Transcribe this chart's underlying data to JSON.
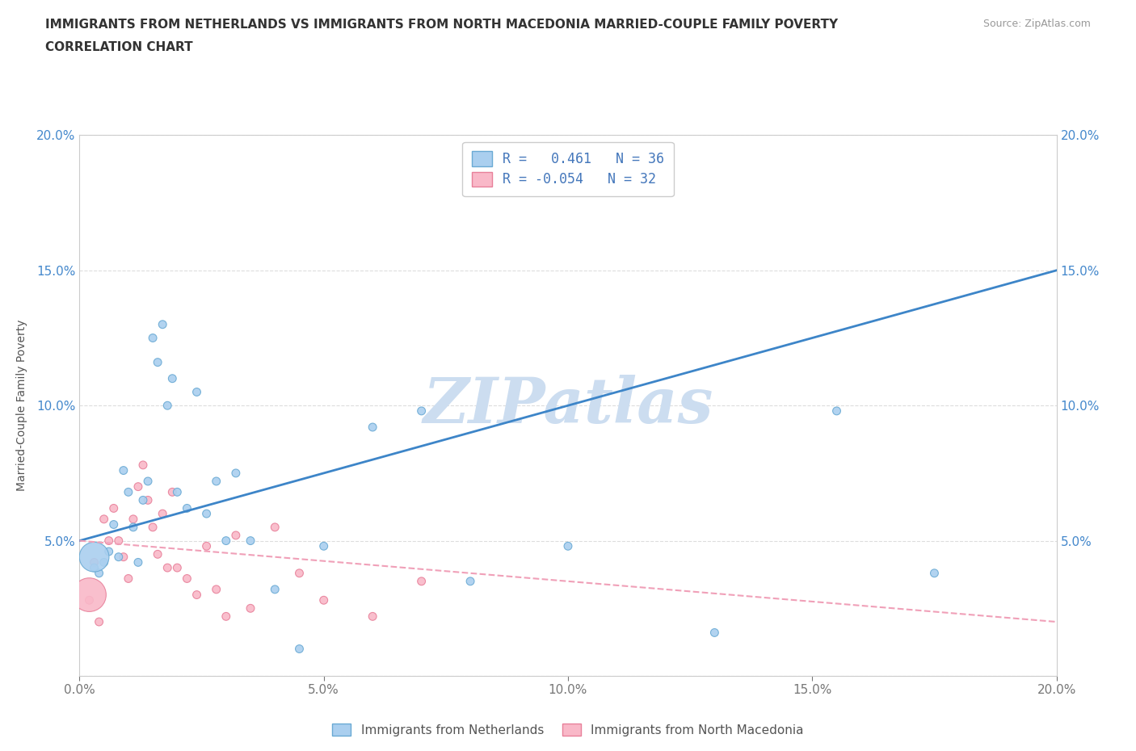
{
  "title_line1": "IMMIGRANTS FROM NETHERLANDS VS IMMIGRANTS FROM NORTH MACEDONIA MARRIED-COUPLE FAMILY POVERTY",
  "title_line2": "CORRELATION CHART",
  "source": "Source: ZipAtlas.com",
  "ylabel": "Married-Couple Family Poverty",
  "xlim": [
    0.0,
    0.2
  ],
  "ylim": [
    0.0,
    0.2
  ],
  "xticks": [
    0.0,
    0.05,
    0.1,
    0.15,
    0.2
  ],
  "yticks": [
    0.0,
    0.05,
    0.1,
    0.15,
    0.2
  ],
  "netherlands_color": "#aacfef",
  "north_macedonia_color": "#f9b8c8",
  "netherlands_edge": "#6aaad4",
  "north_macedonia_edge": "#e8809a",
  "regression_blue": "#3d85c8",
  "regression_pink": "#f0a0b8",
  "netherlands_R": 0.461,
  "netherlands_N": 36,
  "north_macedonia_R": -0.054,
  "north_macedonia_N": 32,
  "watermark": "ZIPatlas",
  "watermark_color": "#ccddf0",
  "legend_label_netherlands": "Immigrants from Netherlands",
  "legend_label_north_macedonia": "Immigrants from North Macedonia",
  "blue_line_x": [
    0.0,
    0.2
  ],
  "blue_line_y": [
    0.05,
    0.15
  ],
  "pink_line_x": [
    0.0,
    0.2
  ],
  "pink_line_y": [
    0.05,
    0.02
  ],
  "nl_x": [
    0.003,
    0.004,
    0.005,
    0.006,
    0.007,
    0.008,
    0.009,
    0.01,
    0.011,
    0.012,
    0.013,
    0.014,
    0.015,
    0.016,
    0.017,
    0.018,
    0.019,
    0.02,
    0.022,
    0.024,
    0.026,
    0.028,
    0.03,
    0.032,
    0.035,
    0.04,
    0.045,
    0.05,
    0.06,
    0.07,
    0.08,
    0.1,
    0.13,
    0.155,
    0.175,
    0.003
  ],
  "nl_y": [
    0.04,
    0.038,
    0.042,
    0.046,
    0.056,
    0.044,
    0.076,
    0.068,
    0.055,
    0.042,
    0.065,
    0.072,
    0.125,
    0.116,
    0.13,
    0.1,
    0.11,
    0.068,
    0.062,
    0.105,
    0.06,
    0.072,
    0.05,
    0.075,
    0.05,
    0.032,
    0.01,
    0.048,
    0.092,
    0.098,
    0.035,
    0.048,
    0.016,
    0.098,
    0.038,
    0.044
  ],
  "nl_sizes": [
    50,
    50,
    50,
    50,
    50,
    50,
    50,
    50,
    50,
    50,
    50,
    50,
    50,
    50,
    50,
    50,
    50,
    50,
    50,
    50,
    50,
    50,
    50,
    50,
    50,
    50,
    50,
    50,
    50,
    50,
    50,
    50,
    50,
    50,
    50,
    700
  ],
  "nm_x": [
    0.002,
    0.003,
    0.004,
    0.005,
    0.006,
    0.007,
    0.008,
    0.009,
    0.01,
    0.011,
    0.012,
    0.013,
    0.014,
    0.015,
    0.016,
    0.017,
    0.018,
    0.019,
    0.02,
    0.022,
    0.024,
    0.026,
    0.028,
    0.03,
    0.032,
    0.035,
    0.04,
    0.045,
    0.05,
    0.06,
    0.07,
    0.002
  ],
  "nm_y": [
    0.028,
    0.042,
    0.02,
    0.058,
    0.05,
    0.062,
    0.05,
    0.044,
    0.036,
    0.058,
    0.07,
    0.078,
    0.065,
    0.055,
    0.045,
    0.06,
    0.04,
    0.068,
    0.04,
    0.036,
    0.03,
    0.048,
    0.032,
    0.022,
    0.052,
    0.025,
    0.055,
    0.038,
    0.028,
    0.022,
    0.035,
    0.03
  ],
  "nm_sizes": [
    50,
    50,
    50,
    50,
    50,
    50,
    50,
    50,
    50,
    50,
    50,
    50,
    50,
    50,
    50,
    50,
    50,
    50,
    50,
    50,
    50,
    50,
    50,
    50,
    50,
    50,
    50,
    50,
    50,
    50,
    50,
    900
  ]
}
